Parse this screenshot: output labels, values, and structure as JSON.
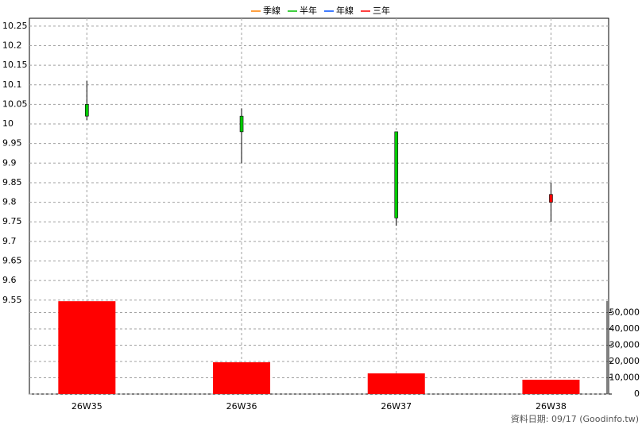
{
  "chart_data": {
    "type": "candlestick",
    "legend": [
      {
        "name": "季線",
        "color": "#ff8000"
      },
      {
        "name": "半年",
        "color": "#00c000"
      },
      {
        "name": "年線",
        "color": "#0050ff"
      },
      {
        "name": "三年",
        "color": "#ff0000"
      }
    ],
    "categories": [
      "26W35",
      "26W36",
      "26W37",
      "26W38"
    ],
    "open": [
      10.05,
      10.02,
      9.98,
      9.8
    ],
    "high": [
      10.11,
      10.04,
      9.98,
      9.85
    ],
    "low": [
      10.01,
      9.9,
      9.74,
      9.75
    ],
    "close": [
      10.02,
      9.98,
      9.76,
      9.82
    ],
    "up_color": "#ff0000",
    "down_color": "#00cc00",
    "volume": {
      "axis": "y2",
      "color": "#ff0000",
      "values": [
        57000,
        19500,
        12700,
        8800
      ]
    },
    "ylim": [
      9.31,
      10.27
    ],
    "yticks": [
      9.55,
      9.6,
      9.65,
      9.7,
      9.75,
      9.8,
      9.85,
      9.9,
      9.95,
      10,
      10.05,
      10.1,
      10.15,
      10.2,
      10.25
    ],
    "y2lim": [
      0,
      60000
    ],
    "y2ticks": [
      0,
      {
        "value": 10000,
        "label": "10,000"
      },
      {
        "value": 20000,
        "label": "20,000"
      },
      {
        "value": 30000,
        "label": "30,000"
      },
      {
        "value": 40000,
        "label": "40,000"
      },
      {
        "value": 50000,
        "label": "50,000"
      }
    ],
    "grid": true,
    "footer": "資料日期: 09/17  (Goodinfo.tw)"
  }
}
